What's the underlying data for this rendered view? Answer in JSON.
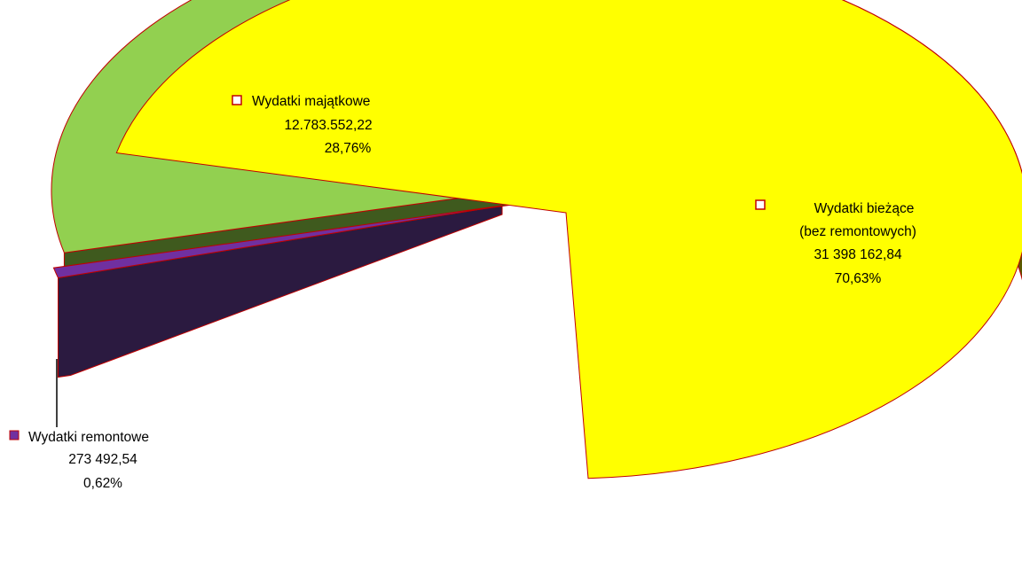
{
  "chart_data": {
    "type": "pie",
    "style": "3d-exploded",
    "slices": [
      {
        "label": "Wydatki bieżące",
        "label_line2": "(bez remontowych)",
        "value": 31398162.84,
        "value_text": "31 398 162,84",
        "percent": 70.63,
        "percent_text": "70,63%",
        "color": "#ffff00"
      },
      {
        "label": "Wydatki remontowe",
        "value": 273492.54,
        "value_text": "273 492,54",
        "percent": 0.62,
        "percent_text": "0,62%",
        "color": "#7030a0"
      },
      {
        "label": "Wydatki majątkowe",
        "value": 12783552.22,
        "value_text": "12.783.552,22",
        "percent": 28.76,
        "percent_text": "28,76%",
        "color": "#92d050"
      }
    ],
    "legend": "none",
    "data_labels": "inside-with-marker"
  },
  "colors": {
    "outline": "#c00000",
    "yellow_side_light": "#d0d000",
    "yellow_side_dark": "#5c5a00",
    "purple_side": "#2b1a40",
    "green_side": "#3f5a1e"
  }
}
